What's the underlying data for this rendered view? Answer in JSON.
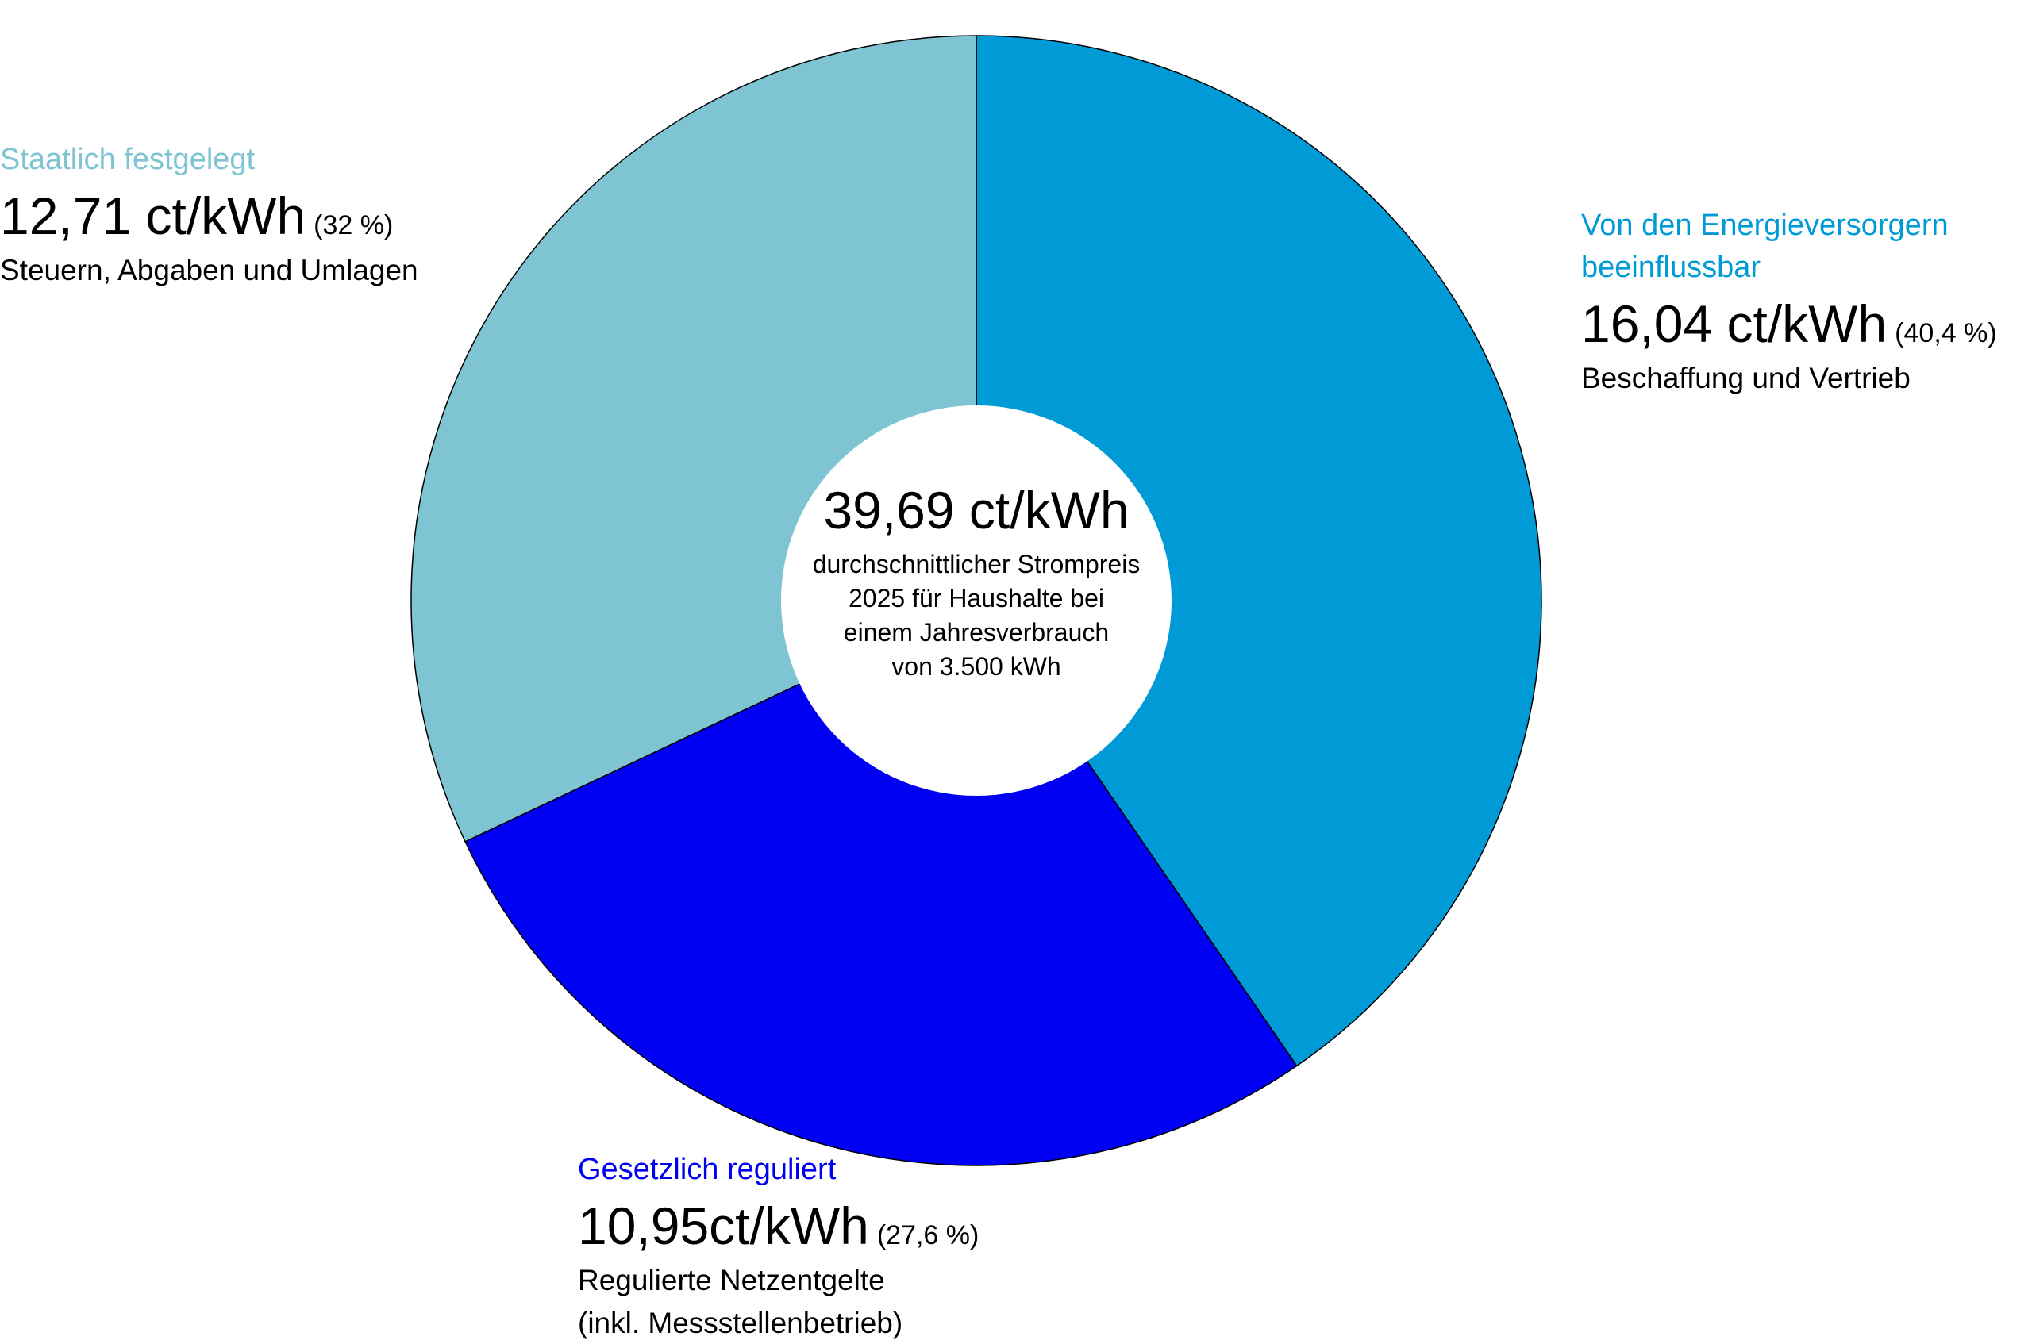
{
  "chart_data": {
    "type": "pie",
    "variant": "donut",
    "unit": "ct/kWh",
    "total": {
      "value": "39,69 ct/kWh",
      "description": "durchschnittlicher Strompreis\n2025 für Haushalte bei\neinem Jahresverbrauch\nvon 3.500 kWh"
    },
    "slices": [
      {
        "category": "Von den Energieversorgern\nbeeinflussbar",
        "value": 16.04,
        "value_label": "16,04 ct/kWh",
        "percent": 40.4,
        "percent_label": "(40,4 %)",
        "description": "Beschaffung und Vertrieb",
        "color": "#009BD6"
      },
      {
        "category": "Gesetzlich reguliert",
        "value": 10.95,
        "value_label": "10,95ct/kWh",
        "percent": 27.6,
        "percent_label": "(27,6 %)",
        "description": "Regulierte Netzentgelte\n(inkl. Messstellenbetrieb)",
        "color": "#0000F2"
      },
      {
        "category": "Staatlich festgelegt",
        "value": 12.71,
        "value_label": "12,71 ct/kWh",
        "percent": 32,
        "percent_label": "(32 %)",
        "description": "Steuern, Abgaben und Umlagen",
        "color": "#7EC4D2"
      }
    ]
  }
}
